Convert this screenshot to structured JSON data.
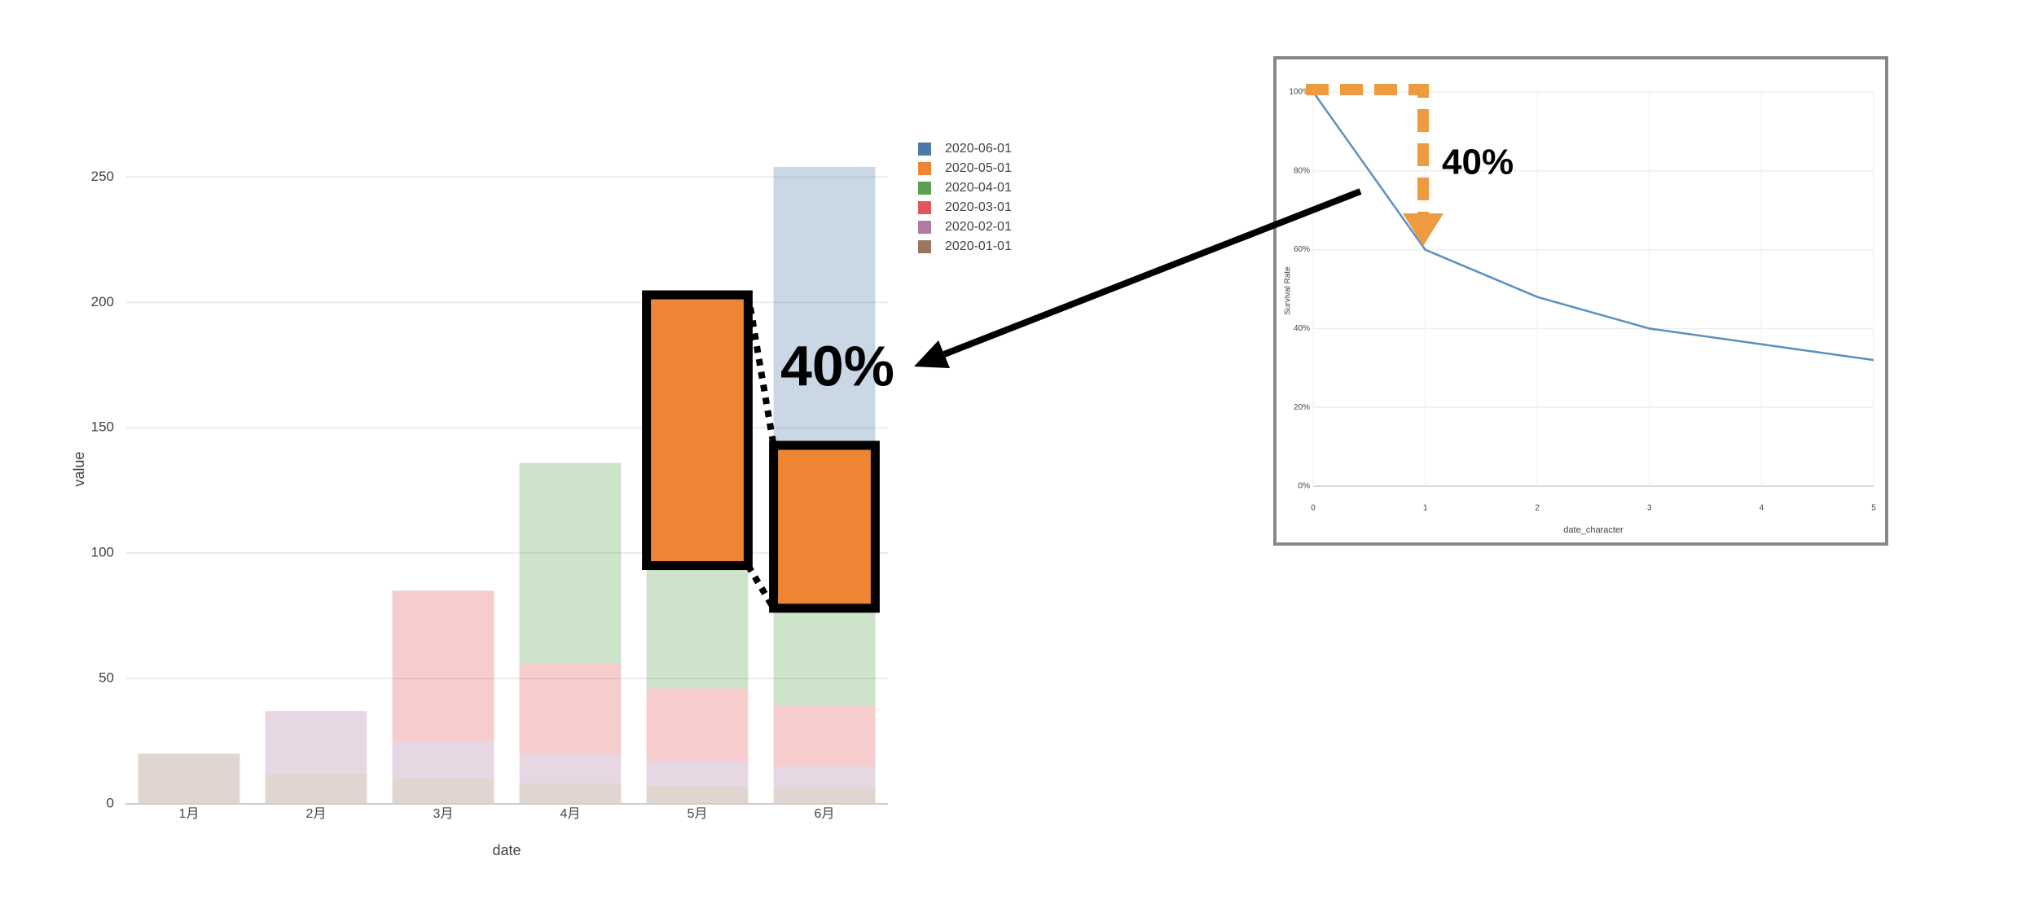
{
  "chart_data": [
    {
      "type": "bar",
      "stacked": true,
      "x_label": "date",
      "y_label": "value",
      "categories": [
        "1月",
        "2月",
        "3月",
        "4月",
        "5月",
        "6月"
      ],
      "series": [
        {
          "name": "2020-06-01",
          "color": "#4e79a7",
          "values": [
            null,
            null,
            null,
            null,
            null,
            111
          ]
        },
        {
          "name": "2020-05-01",
          "color": "#ee8535",
          "highlight": true,
          "values": [
            null,
            null,
            null,
            null,
            108,
            65
          ]
        },
        {
          "name": "2020-04-01",
          "color": "#59a14f",
          "values": [
            null,
            null,
            null,
            80,
            49,
            39
          ]
        },
        {
          "name": "2020-03-01",
          "color": "#e15759",
          "values": [
            null,
            null,
            60,
            36,
            29,
            24
          ]
        },
        {
          "name": "2020-02-01",
          "color": "#b07aa1",
          "values": [
            null,
            25,
            15,
            12,
            10,
            9
          ]
        },
        {
          "name": "2020-01-01",
          "color": "#9c755f",
          "values": [
            20,
            12,
            10,
            8,
            7,
            6
          ]
        }
      ],
      "ylim": [
        0,
        267
      ],
      "yticks": [
        0,
        50,
        100,
        150,
        200,
        250
      ],
      "grid": true,
      "annotation": "40%"
    },
    {
      "type": "line",
      "x_label": "date_character",
      "y_label": "Survival Rate",
      "x": [
        0,
        1,
        2,
        3,
        4,
        5
      ],
      "values": [
        100,
        60,
        48,
        40,
        36,
        32
      ],
      "color": "#5b8fc0",
      "xlim": [
        0,
        5
      ],
      "xticks": [
        0,
        1,
        2,
        3,
        4,
        5
      ],
      "ylim": [
        0,
        100
      ],
      "yticks": [
        {
          "value": 0,
          "label": "0%"
        },
        {
          "value": 20,
          "label": "20%"
        },
        {
          "value": 40,
          "label": "40%"
        },
        {
          "value": 60,
          "label": "60%"
        },
        {
          "value": 80,
          "label": "80%"
        },
        {
          "value": 100,
          "label": "100%"
        }
      ],
      "grid": true,
      "annotation": "40%"
    }
  ]
}
